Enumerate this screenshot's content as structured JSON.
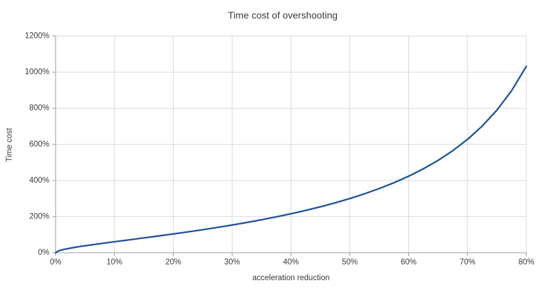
{
  "chart_data": {
    "type": "line",
    "title": "Time cost of overshooting",
    "xlabel": "acceleration reduction",
    "ylabel": "Time cost",
    "xlim": [
      0,
      80
    ],
    "ylim": [
      0,
      1200
    ],
    "x_tick_step": 10,
    "y_tick_step": 200,
    "x_tick_labels": [
      "0%",
      "10%",
      "20%",
      "30%",
      "40%",
      "50%",
      "60%",
      "70%",
      "80%"
    ],
    "y_tick_labels": [
      "0%",
      "200%",
      "400%",
      "600%",
      "800%",
      "1000%",
      "1200%"
    ],
    "grid": true,
    "legend": "none",
    "series": [
      {
        "name": "Time cost",
        "color": "#1a5298",
        "points": [
          [
            0,
            0
          ],
          [
            0.5,
            10.6
          ],
          [
            1,
            15.3
          ],
          [
            2,
            22.4
          ],
          [
            3,
            28.3
          ],
          [
            4,
            33.6
          ],
          [
            5,
            38.5
          ],
          [
            7.5,
            50.0
          ],
          [
            10,
            60.8
          ],
          [
            12.5,
            71.4
          ],
          [
            15,
            82.1
          ],
          [
            17.5,
            92.9
          ],
          [
            20,
            104.1
          ],
          [
            22.5,
            115.6
          ],
          [
            25,
            127.6
          ],
          [
            27.5,
            140.2
          ],
          [
            30,
            153.5
          ],
          [
            32.5,
            167.6
          ],
          [
            35,
            182.6
          ],
          [
            37.5,
            198.6
          ],
          [
            40,
            215.7
          ],
          [
            42.5,
            234.3
          ],
          [
            45,
            254.3
          ],
          [
            47.5,
            276.1
          ],
          [
            50,
            300.0
          ],
          [
            52.5,
            326.3
          ],
          [
            55,
            355.3
          ],
          [
            57.5,
            387.6
          ],
          [
            60,
            423.9
          ],
          [
            62.5,
            464.8
          ],
          [
            65,
            511.5
          ],
          [
            67.5,
            565.2
          ],
          [
            70,
            627.7
          ],
          [
            72.5,
            701.5
          ],
          [
            75,
            790.0
          ],
          [
            77.5,
            897.8
          ],
          [
            80,
            1032.5
          ]
        ]
      }
    ]
  },
  "colors": {
    "background": "#ffffff",
    "gridline": "#d9d9d9",
    "axis": "#9e9e9e",
    "text": "#3a3a3a"
  }
}
